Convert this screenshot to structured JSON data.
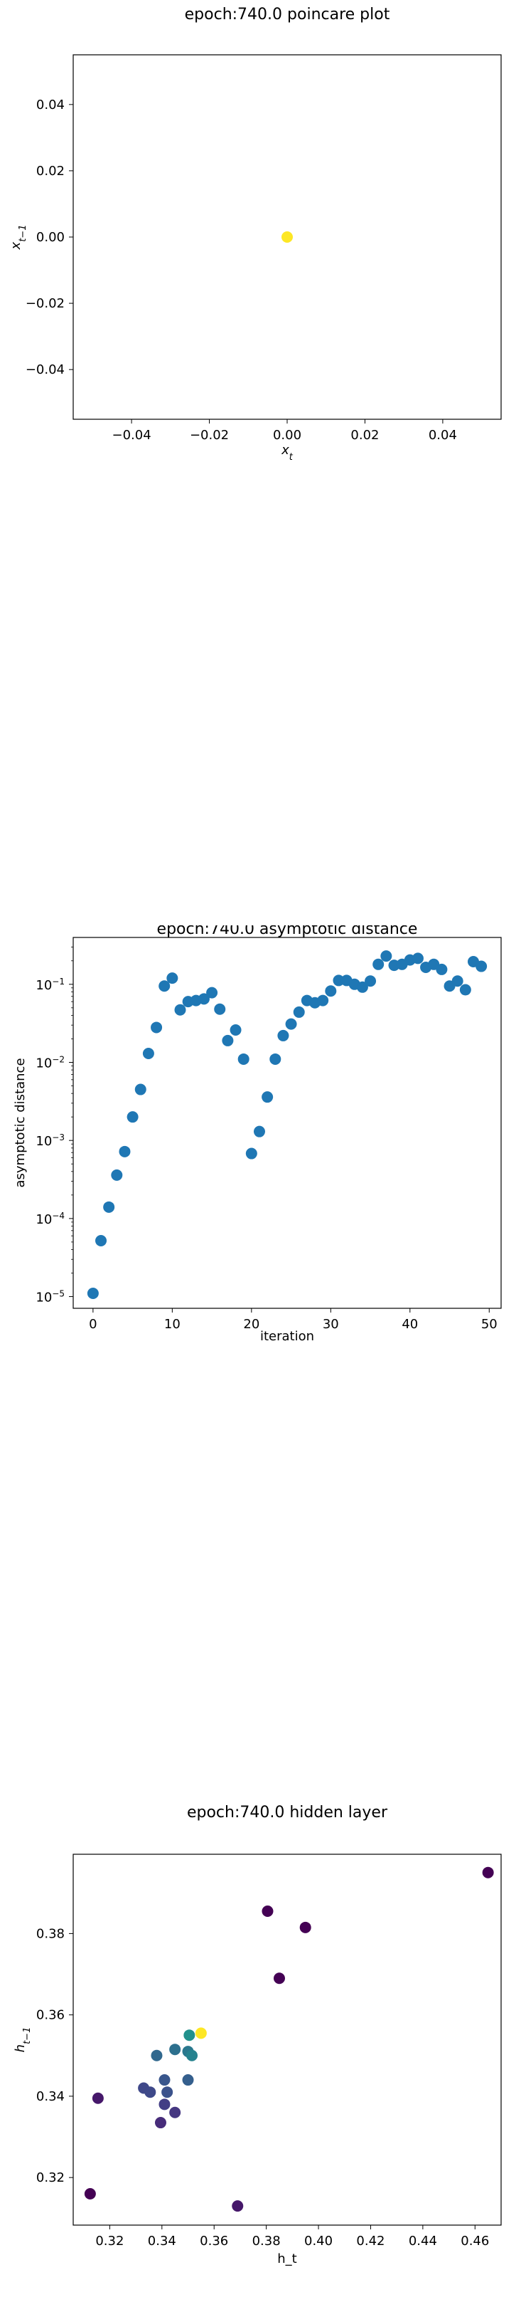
{
  "chart_data": [
    {
      "type": "scatter",
      "title": "epoch:740.0 poincare plot",
      "xlabel": "x",
      "xlabel_sub": "t",
      "ylabel": "x",
      "ylabel_sub": "t−1",
      "xlim": [
        -0.055,
        0.055
      ],
      "ylim": [
        -0.055,
        0.055
      ],
      "xticks": [
        -0.04,
        -0.02,
        0.0,
        0.02,
        0.04
      ],
      "xticklabels": [
        "−0.04",
        "−0.02",
        "0.00",
        "0.02",
        "0.04"
      ],
      "yticks": [
        -0.04,
        -0.02,
        0.0,
        0.02,
        0.04
      ],
      "yticklabels": [
        "−0.04",
        "−0.02",
        "0.00",
        "0.02",
        "0.04"
      ],
      "grid": false,
      "points": [
        {
          "x": 0.0,
          "y": 0.0,
          "color": "#fde725"
        }
      ]
    },
    {
      "type": "scatter",
      "title": "epoch:740.0 asymptotic distance",
      "xlabel": "iteration",
      "ylabel": "asymptotic distance",
      "yscale": "log",
      "xlim": [
        -2.5,
        51.5
      ],
      "ylim_log10": [
        -5.15,
        -0.4
      ],
      "xticks": [
        0,
        10,
        20,
        30,
        40,
        50
      ],
      "xticklabels": [
        "0",
        "10",
        "20",
        "30",
        "40",
        "50"
      ],
      "yticks_log10": [
        -5,
        -4,
        -3,
        -2,
        -1
      ],
      "yticklabels": [
        {
          "base": "10",
          "exp": "−5"
        },
        {
          "base": "10",
          "exp": "−4"
        },
        {
          "base": "10",
          "exp": "−3"
        },
        {
          "base": "10",
          "exp": "−2"
        },
        {
          "base": "10",
          "exp": "−1"
        }
      ],
      "grid": false,
      "color": "#1f77b4",
      "x": [
        0,
        1,
        2,
        3,
        4,
        5,
        6,
        7,
        8,
        9,
        10,
        11,
        12,
        13,
        14,
        15,
        16,
        17,
        18,
        19,
        20,
        21,
        22,
        23,
        24,
        25,
        26,
        27,
        28,
        29,
        30,
        31,
        32,
        33,
        34,
        35,
        36,
        37,
        38,
        39,
        40,
        41,
        42,
        43,
        44,
        45,
        46,
        47,
        48,
        49
      ],
      "y": [
        1.1e-05,
        5.2e-05,
        0.00014,
        0.00036,
        0.00072,
        0.002,
        0.0045,
        0.013,
        0.028,
        0.095,
        0.12,
        0.047,
        0.06,
        0.062,
        0.065,
        0.078,
        0.048,
        0.019,
        0.026,
        0.011,
        0.00068,
        0.0013,
        0.0036,
        0.011,
        0.022,
        0.031,
        0.044,
        0.062,
        0.058,
        0.062,
        0.082,
        0.112,
        0.112,
        0.1,
        0.092,
        0.11,
        0.18,
        0.23,
        0.175,
        0.18,
        0.205,
        0.215,
        0.165,
        0.18,
        0.155,
        0.095,
        0.11,
        0.085,
        0.195,
        0.17
      ]
    },
    {
      "type": "scatter",
      "title": "epoch:740.0 hidden layer",
      "xlabel": "h_t",
      "ylabel": "h",
      "ylabel_sub": "t−1",
      "xlim": [
        0.306,
        0.47
      ],
      "ylim": [
        0.3083,
        0.3995
      ],
      "xticks": [
        0.32,
        0.34,
        0.36,
        0.38,
        0.4,
        0.42,
        0.44,
        0.46
      ],
      "xticklabels": [
        "0.32",
        "0.34",
        "0.36",
        "0.38",
        "0.40",
        "0.42",
        "0.44",
        "0.46"
      ],
      "yticks": [
        0.32,
        0.34,
        0.36,
        0.38
      ],
      "yticklabels": [
        "0.32",
        "0.34",
        "0.36",
        "0.38"
      ],
      "grid": false,
      "points": [
        {
          "x": 0.465,
          "y": 0.395,
          "color": "#440154"
        },
        {
          "x": 0.3805,
          "y": 0.3855,
          "color": "#440154"
        },
        {
          "x": 0.395,
          "y": 0.3815,
          "color": "#440154"
        },
        {
          "x": 0.385,
          "y": 0.369,
          "color": "#440154"
        },
        {
          "x": 0.3125,
          "y": 0.316,
          "color": "#440154"
        },
        {
          "x": 0.3155,
          "y": 0.3395,
          "color": "#46186a"
        },
        {
          "x": 0.369,
          "y": 0.313,
          "color": "#46186a"
        },
        {
          "x": 0.3395,
          "y": 0.3335,
          "color": "#472c7a"
        },
        {
          "x": 0.345,
          "y": 0.336,
          "color": "#453781"
        },
        {
          "x": 0.341,
          "y": 0.338,
          "color": "#433e85"
        },
        {
          "x": 0.333,
          "y": 0.342,
          "color": "#3f4889"
        },
        {
          "x": 0.3355,
          "y": 0.341,
          "color": "#3e4989"
        },
        {
          "x": 0.342,
          "y": 0.341,
          "color": "#3b528b"
        },
        {
          "x": 0.341,
          "y": 0.344,
          "color": "#39568c"
        },
        {
          "x": 0.35,
          "y": 0.344,
          "color": "#355f8d"
        },
        {
          "x": 0.338,
          "y": 0.35,
          "color": "#31688e"
        },
        {
          "x": 0.345,
          "y": 0.3515,
          "color": "#2d708e"
        },
        {
          "x": 0.35,
          "y": 0.351,
          "color": "#2a788e"
        },
        {
          "x": 0.3515,
          "y": 0.35,
          "color": "#26828e"
        },
        {
          "x": 0.3505,
          "y": 0.355,
          "color": "#21918c"
        },
        {
          "x": 0.355,
          "y": 0.3555,
          "color": "#fde725"
        }
      ]
    }
  ]
}
